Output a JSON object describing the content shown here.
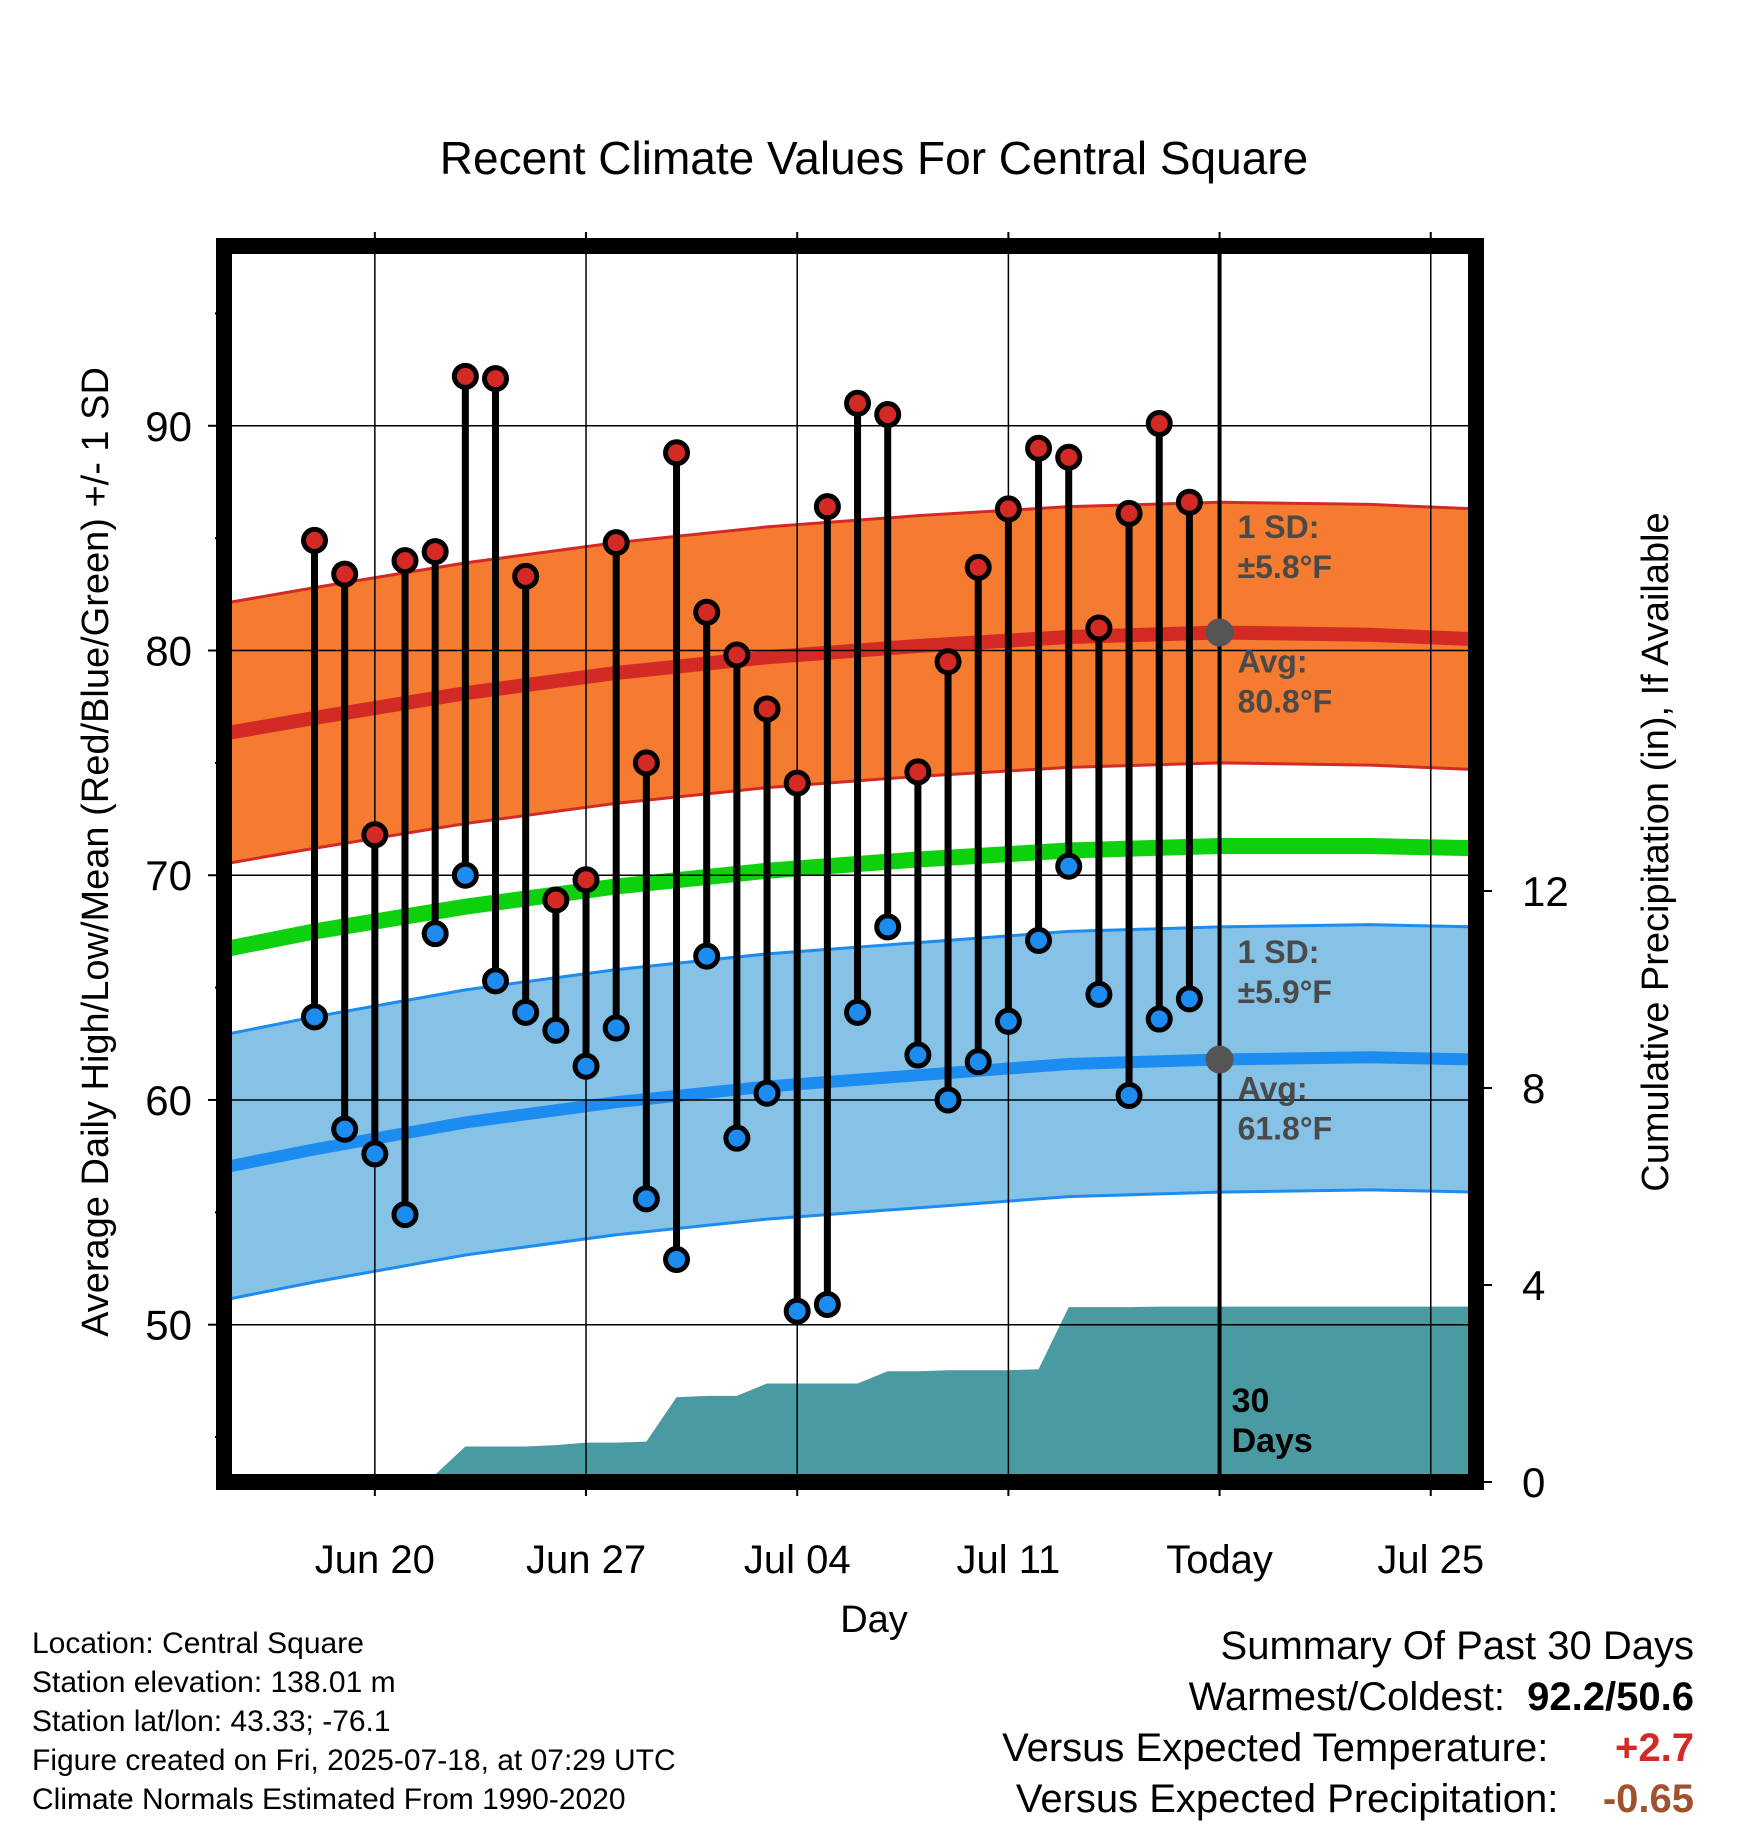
{
  "chart_data": {
    "type": "line",
    "title": "Recent Climate Values For Central Square",
    "xlabel": "Day",
    "ylabel": "Average Daily High/Low/Mean (Red/Blue/Green) +/- 1 SD",
    "y2label": "Cumulative Precipitation (in), If Available",
    "x_ticks": [
      "Jun 20",
      "Jun 27",
      "Jul 04",
      "Jul 11",
      "Today",
      "Jul 25"
    ],
    "y_ticks": [
      50,
      60,
      70,
      80,
      90
    ],
    "y2_ticks": [
      0,
      4,
      8,
      12
    ],
    "ylim": [
      43,
      98
    ],
    "y2lim": [
      0,
      12
    ],
    "x_range_days": [
      -33,
      8.5
    ],
    "grid": true,
    "days": [
      -30,
      -29,
      -28,
      -27,
      -26,
      -25,
      -24,
      -23,
      -22,
      -21,
      -20,
      -19,
      -18,
      -17,
      -16,
      -15,
      -14,
      -13,
      -12,
      -11,
      -10,
      -9,
      -8,
      -7,
      -6,
      -5,
      -4,
      -3,
      -2,
      -1
    ],
    "daily_high": [
      84.9,
      83.4,
      71.8,
      84.0,
      84.4,
      92.2,
      92.1,
      83.3,
      68.9,
      69.8,
      84.8,
      75.0,
      88.8,
      81.7,
      79.8,
      77.4,
      74.1,
      86.4,
      91.0,
      90.5,
      74.6,
      79.5,
      83.7,
      86.3,
      89.0,
      88.6,
      81.0,
      86.1,
      90.1,
      86.6
    ],
    "daily_low": [
      63.7,
      58.7,
      57.6,
      54.9,
      67.4,
      70.0,
      65.3,
      63.9,
      63.1,
      61.5,
      63.2,
      55.6,
      52.9,
      66.4,
      58.3,
      60.3,
      50.6,
      50.9,
      63.9,
      67.7,
      62.0,
      60.0,
      61.7,
      63.5,
      67.1,
      70.4,
      64.7,
      60.2,
      63.6,
      64.5
    ],
    "normal_days": [
      -33,
      -30,
      -25,
      -20,
      -15,
      -10,
      -5,
      0,
      5,
      8.5
    ],
    "normal_high": [
      76.3,
      77.0,
      78.1,
      79.0,
      79.7,
      80.2,
      80.6,
      80.8,
      80.7,
      80.5
    ],
    "normal_low": [
      57.0,
      57.8,
      59.0,
      59.9,
      60.6,
      61.1,
      61.6,
      61.8,
      61.9,
      61.8
    ],
    "normal_mean": [
      66.7,
      67.5,
      68.6,
      69.5,
      70.2,
      70.7,
      71.1,
      71.3,
      71.3,
      71.2
    ],
    "high_sd": 5.8,
    "low_sd": 5.9,
    "precip_days": [
      -33,
      -30,
      -29,
      -28,
      -27,
      -26,
      -25,
      -24,
      -23,
      -22,
      -21,
      -20,
      -19,
      -18,
      -17,
      -16,
      -15,
      -14,
      -13,
      -12,
      -11,
      -10,
      -9,
      -8,
      -7,
      -6,
      -5,
      -4,
      -3,
      -2,
      -1,
      0,
      8.5
    ],
    "cumulative_precip": [
      0,
      0,
      0,
      0.03,
      0.15,
      0.15,
      0.72,
      0.72,
      0.72,
      0.75,
      0.8,
      0.8,
      0.82,
      1.72,
      1.75,
      1.75,
      2.0,
      2.0,
      2.0,
      2.0,
      2.25,
      2.25,
      2.27,
      2.27,
      2.27,
      2.29,
      3.55,
      3.55,
      3.55,
      3.56,
      3.56,
      3.56,
      3.56
    ],
    "annotations": {
      "high_sd_label": "1 SD:",
      "high_sd_value": "±5.8°F",
      "high_avg_label": "Avg:",
      "high_avg_value": "80.8°F",
      "low_sd_label": "1 SD:",
      "low_sd_value": "±5.9°F",
      "low_avg_label": "Avg:",
      "low_avg_value": "61.8°F",
      "period_line1": "30",
      "period_line2": "Days"
    },
    "colors": {
      "high_band": "#f47b2f",
      "high_line": "#d42a25",
      "low_band": "#86c1e6",
      "low_line": "#1c8cf0",
      "mean_line": "#0ed10e",
      "precip": "#4a9aa2",
      "high_marker": "#d42a25",
      "low_marker": "#1c8cf0",
      "annotation": "#4a4a4a"
    }
  },
  "info": {
    "location": "Location: Central Square",
    "elevation": "Station elevation: 138.01 m",
    "latlon": "Station lat/lon: 43.33; -76.1",
    "created": "Figure created on Fri, 2025-07-18, at 07:29 UTC",
    "normals": "Climate Normals Estimated From 1990-2020"
  },
  "summary": {
    "heading": "Summary Of Past 30 Days",
    "warmest_label": "Warmest/Coldest:",
    "warmest_value": "92.2/50.6",
    "temp_label": "Versus Expected Temperature:",
    "temp_value": "+2.7",
    "temp_color": "#d42a25",
    "precip_label": "Versus Expected Precipitation:",
    "precip_value": "-0.65",
    "precip_color": "#a0522d"
  }
}
